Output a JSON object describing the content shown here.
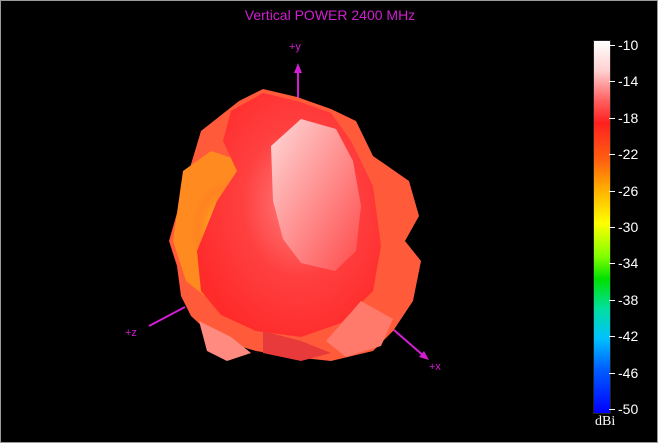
{
  "title": "Vertical POWER 2400  MHz",
  "axes": {
    "y": "+y",
    "x": "+x",
    "z": "+z"
  },
  "colorbar": {
    "unit": "dBi",
    "ticks": [
      "-10",
      "-14",
      "-18",
      "-22",
      "-26",
      "-30",
      "-34",
      "-38",
      "-42",
      "-46",
      "-50"
    ]
  },
  "colors": {
    "title": "#d11ed1",
    "background": "#000000"
  }
}
